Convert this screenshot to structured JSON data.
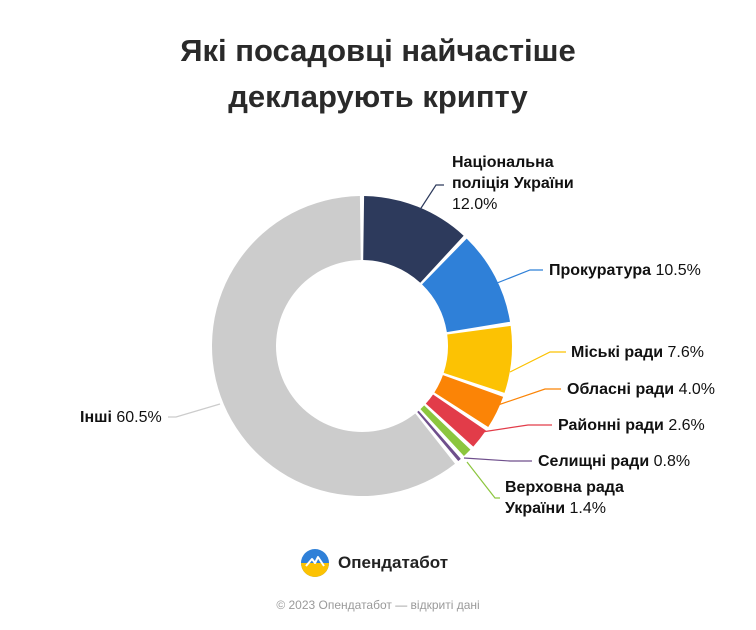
{
  "title": {
    "line1": "Які посадовці найчастіше",
    "line2": "декларують крипту"
  },
  "chart_data": {
    "type": "pie",
    "donut": true,
    "title": "Які посадовці найчастіше декларують крипту",
    "unit": "%",
    "slices": [
      {
        "name": "Національна поліція України",
        "value": 12.0,
        "display": "12.0%",
        "color": "#2d3a5c"
      },
      {
        "name": "Прокуратура",
        "value": 10.5,
        "display": "10.5%",
        "color": "#2f80d8"
      },
      {
        "name": "Міські ради",
        "value": 7.6,
        "display": "7.6%",
        "color": "#fcc203"
      },
      {
        "name": "Обласні ради",
        "value": 4.0,
        "display": "4.0%",
        "color": "#fb8406"
      },
      {
        "name": "Районні ради",
        "value": 2.6,
        "display": "2.6%",
        "color": "#e23c49"
      },
      {
        "name": "Верховна рада України",
        "value": 1.4,
        "display": "1.4%",
        "color": "#8cc63e"
      },
      {
        "name": "Селищні ради",
        "value": 0.8,
        "display": "0.8%",
        "color": "#6f4f8c"
      },
      {
        "name": "Інші",
        "value": 60.5,
        "display": "60.5%",
        "color": "#cccccc"
      }
    ]
  },
  "labels": {
    "police_1": "Національна",
    "police_2": "поліція України",
    "police_val": "12.0%",
    "prosecutor": "Прокуратура",
    "prosecutor_val": "10.5%",
    "city": "Міські ради",
    "city_val": "7.6%",
    "oblast": "Обласні ради",
    "oblast_val": "4.0%",
    "raion": "Районні ради",
    "raion_val": "2.6%",
    "selysh": "Селищні ради",
    "selysh_val": "0.8%",
    "rada_1": "Верховна рада",
    "rada_2": "України",
    "rada_val": "1.4%",
    "other": "Інші",
    "other_val": "60.5%"
  },
  "brand": {
    "name": "Опендатабот"
  },
  "footer": "© 2023 Опендатабот — відкриті дані"
}
